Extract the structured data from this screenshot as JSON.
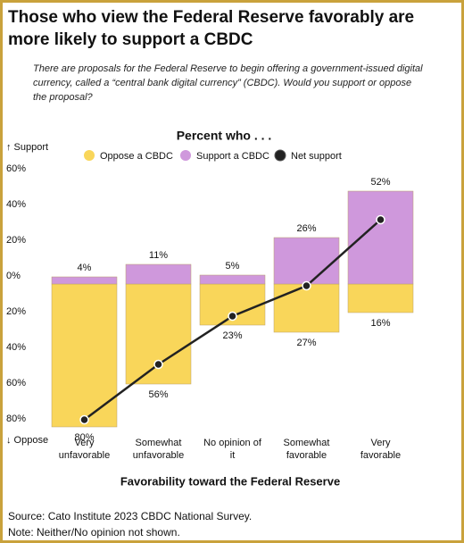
{
  "chart_data": {
    "type": "bar",
    "title": "Those who view the Federal Reserve favorably are more likely to support a CBDC",
    "subtitle": "There are proposals for the Federal Reserve to begin offering a government-issued digital currency, called a “central bank digital currency” (CBDC). Would you support or oppose the proposal?",
    "legend_title": "Percent who . . .",
    "y_top_label": "↑ Support",
    "y_bottom_label": "↓ Oppose",
    "x_label": "Favorability toward the Federal Reserve",
    "source": "Source: Cato Institute 2023 CBDC National Survey.",
    "note": "Note: Neither/No opinion not shown.",
    "categories": [
      "Very unfavorable",
      "Somewhat unfavorable",
      "No opinion of it",
      "Somewhat favorable",
      "Very favorable"
    ],
    "series": [
      {
        "name": "Oppose a CBDC",
        "color": "#f9d65a",
        "values": [
          -80,
          -56,
          -23,
          -27,
          -16
        ],
        "value_labels": [
          "80%",
          "56%",
          "23%",
          "27%",
          "16%"
        ]
      },
      {
        "name": "Support a CBDC",
        "color": "#cf98dc",
        "values": [
          4,
          11,
          5,
          26,
          52
        ],
        "value_labels": [
          "4%",
          "11%",
          "5%",
          "26%",
          "52%"
        ]
      },
      {
        "name": "Net support",
        "type": "line",
        "color": "#222222",
        "values": [
          -76,
          -45,
          -18,
          -1,
          36
        ]
      }
    ],
    "ylim": [
      -80,
      60
    ],
    "yticks": [
      {
        "value": 60,
        "label": "60%"
      },
      {
        "value": 40,
        "label": "40%"
      },
      {
        "value": 20,
        "label": "20%"
      },
      {
        "value": 0,
        "label": "0%"
      },
      {
        "value": -20,
        "label": "20%"
      },
      {
        "value": -40,
        "label": "40%"
      },
      {
        "value": -60,
        "label": "60%"
      },
      {
        "value": -80,
        "label": "80%"
      }
    ],
    "grid": false
  }
}
